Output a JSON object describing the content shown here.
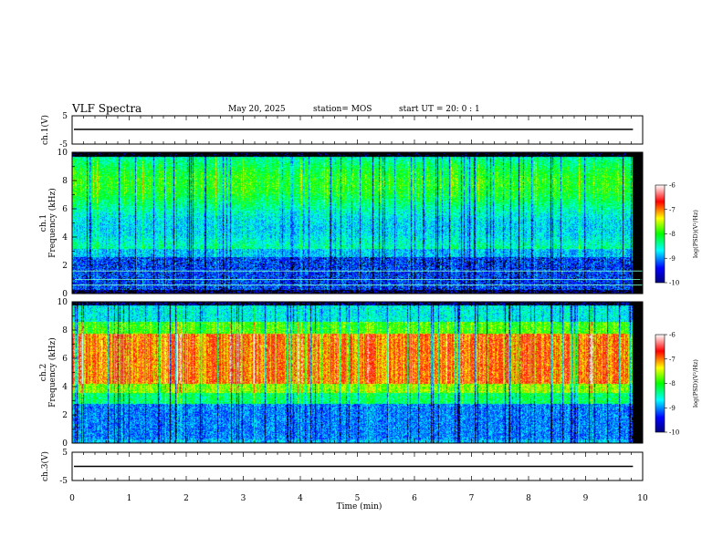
{
  "header": {
    "title": "VLF Spectra",
    "date": "May 20, 2025",
    "station": "station= MOS",
    "start": "start  UT  =   20: 0   : 1"
  },
  "chart_data": [
    {
      "type": "line",
      "name": "ch1-waveform",
      "ylabel": "ch.1(V)",
      "ylim": [
        -5,
        5
      ],
      "yticks": [
        5,
        -5
      ],
      "xlim": [
        0,
        10
      ],
      "baseline": 0
    },
    {
      "type": "heatmap",
      "name": "ch1-spectrogram",
      "ylabel": "ch.1\nFrequency (kHz)",
      "ylim": [
        0,
        10
      ],
      "yticks": [
        0,
        2,
        4,
        6,
        8,
        10
      ],
      "xlim": [
        0,
        10
      ],
      "data_end_min": 9.83,
      "colorbar": {
        "label": "log(PSD)(V²/Hz)",
        "min": -10,
        "max": -6,
        "ticks": [
          -6,
          -7,
          -8,
          -9,
          -10
        ]
      },
      "reference_lines_khz": [
        0.6,
        1.0,
        1.6
      ]
    },
    {
      "type": "heatmap",
      "name": "ch2-spectrogram",
      "ylabel": "ch.2\nFrequency (kHz)",
      "ylim": [
        0,
        10
      ],
      "yticks": [
        0,
        2,
        4,
        6,
        8,
        10
      ],
      "xlim": [
        0,
        10
      ],
      "data_end_min": 9.83,
      "colorbar": {
        "label": "log(PSD)(V²/Hz)",
        "min": -10,
        "max": -6,
        "ticks": [
          -6,
          -7,
          -8,
          -9,
          -10
        ]
      }
    },
    {
      "type": "line",
      "name": "ch3-waveform",
      "ylabel": "ch.3(V)",
      "ylim": [
        -5,
        5
      ],
      "yticks": [
        5,
        -5
      ],
      "xlim": [
        0,
        10
      ],
      "baseline": 0
    }
  ],
  "xaxis": {
    "label": "Time  (min)",
    "ticks": [
      0,
      1,
      2,
      3,
      4,
      5,
      6,
      7,
      8,
      9,
      10
    ]
  },
  "colors": {
    "frame": "#000000",
    "ref_line": "#7fffd4"
  }
}
